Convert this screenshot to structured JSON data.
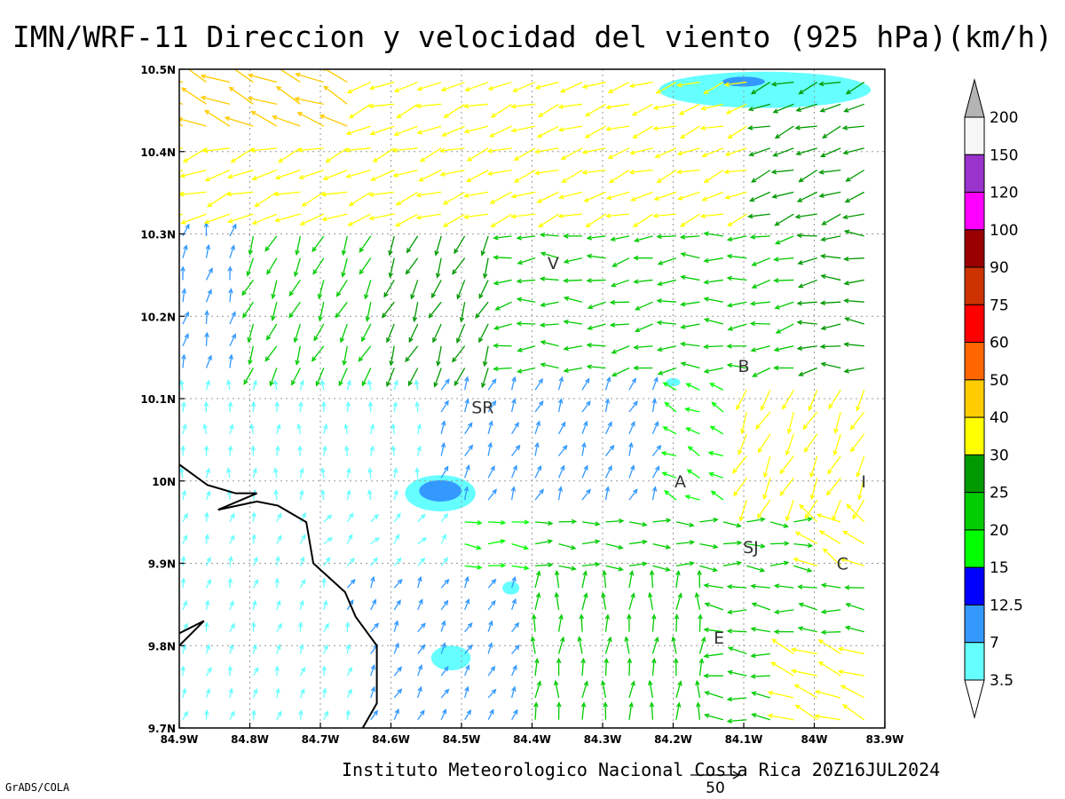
{
  "title": "IMN/WRF-11 Direccion y velocidad del viento (925 hPa)(km/h)",
  "credit": "Instituto Meteorologico Nacional Costa Rica 20Z16JUL2024",
  "software": "GrADS/COLA",
  "reference_vector_label": "50",
  "chart_data": {
    "type": "map",
    "variable": "wind vectors 925 hPa (km/h)",
    "x_ticks": [
      "84.9W",
      "84.8W",
      "84.7W",
      "84.6W",
      "84.5W",
      "84.4W",
      "84.3W",
      "84.2W",
      "84.1W",
      "84W",
      "83.9W"
    ],
    "y_ticks": [
      "10.5N",
      "10.4N",
      "10.3N",
      "10.2N",
      "10.1N",
      "10N",
      "9.9N",
      "9.8N",
      "9.7N"
    ],
    "lon_range": [
      -84.9,
      -83.9
    ],
    "lat_range": [
      9.7,
      10.5
    ],
    "grid": "dotted",
    "colorbar": {
      "labels": [
        "200",
        "150",
        "120",
        "100",
        "90",
        "75",
        "60",
        "50",
        "40",
        "30",
        "25",
        "20",
        "15",
        "12.5",
        "7",
        "3.5"
      ],
      "colors": [
        "#f6f6f6",
        "#9933cc",
        "#ff00ff",
        "#990000",
        "#cc3300",
        "#ff0000",
        "#ff6600",
        "#ffcc00",
        "#ffff00",
        "#009900",
        "#00cc00",
        "#00ff00",
        "#0000ff",
        "#3399ff",
        "#66ffff"
      ],
      "top_arrow_color": "#b4b4b4",
      "bottom_arrow_color": "#ffffff"
    },
    "places": [
      {
        "label": "V",
        "lon": -84.37,
        "lat": 10.265
      },
      {
        "label": "SR",
        "lon": -84.47,
        "lat": 10.09
      },
      {
        "label": "B",
        "lon": -84.1,
        "lat": 10.14
      },
      {
        "label": "A",
        "lon": -84.19,
        "lat": 10.0
      },
      {
        "label": "I",
        "lon": -83.93,
        "lat": 10.0
      },
      {
        "label": "SJ",
        "lon": -84.09,
        "lat": 9.92
      },
      {
        "label": "C",
        "lon": -83.96,
        "lat": 9.9
      },
      {
        "label": "E",
        "lon": -84.135,
        "lat": 9.81
      }
    ],
    "low_speed_patches": [
      {
        "lon": -84.07,
        "lat": 10.475,
        "rx": 0.15,
        "ry": 0.022,
        "category": "3.5"
      },
      {
        "lon": -84.1,
        "lat": 10.485,
        "rx": 0.03,
        "ry": 0.006,
        "category": "7"
      },
      {
        "lon": -84.53,
        "lat": 9.985,
        "rx": 0.05,
        "ry": 0.022,
        "category": "3.5"
      },
      {
        "lon": -84.53,
        "lat": 9.988,
        "rx": 0.03,
        "ry": 0.013,
        "category": "7"
      },
      {
        "lon": -84.43,
        "lat": 9.87,
        "rx": 0.012,
        "ry": 0.008,
        "category": "3.5"
      },
      {
        "lon": -84.515,
        "lat": 9.785,
        "rx": 0.028,
        "ry": 0.015,
        "category": "3.5"
      },
      {
        "lon": -84.2,
        "lat": 10.12,
        "rx": 0.01,
        "ry": 0.005,
        "category": "3.5"
      }
    ],
    "coastline_lonlat": [
      [
        -84.9,
        10.02
      ],
      [
        -84.86,
        9.995
      ],
      [
        -84.82,
        9.985
      ],
      [
        -84.79,
        9.985
      ],
      [
        -84.845,
        9.965
      ],
      [
        -84.79,
        9.975
      ],
      [
        -84.76,
        9.97
      ],
      [
        -84.72,
        9.95
      ],
      [
        -84.71,
        9.9
      ],
      [
        -84.665,
        9.865
      ],
      [
        -84.65,
        9.835
      ],
      [
        -84.62,
        9.8
      ],
      [
        -84.62,
        9.76
      ],
      [
        -84.62,
        9.73
      ],
      [
        -84.64,
        9.7
      ]
    ],
    "coastline2_lonlat": [
      [
        -84.9,
        9.8
      ],
      [
        -84.865,
        9.83
      ],
      [
        -84.9,
        9.815
      ]
    ]
  }
}
